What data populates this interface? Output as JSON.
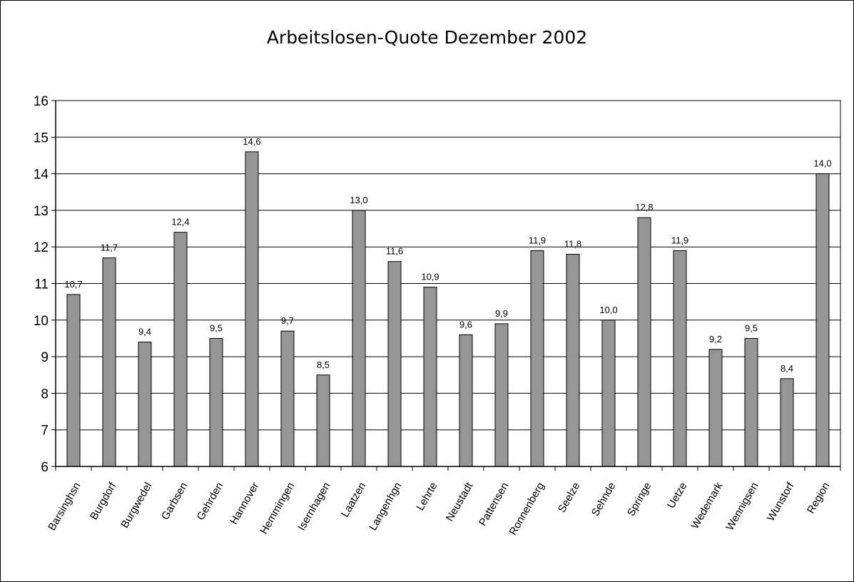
{
  "chart_data": {
    "type": "bar",
    "title": "Arbeitslosen-Quote Dezember 2002",
    "xlabel": "",
    "ylabel": "",
    "ylim": [
      6,
      16
    ],
    "yticks": [
      "6",
      "7",
      "8",
      "9",
      "10",
      "11",
      "12",
      "13",
      "14",
      "15",
      "16"
    ],
    "grid": true,
    "legend": "none",
    "bar_color": "#969696",
    "categories": [
      "Barsinghsn",
      "Burgdorf",
      "Burgwedel",
      "Garbsen",
      "Gehrden",
      "Hannover",
      "Hemmingen",
      "Isernhagen",
      "Laatzen",
      "Langenhgn",
      "Lehrte",
      "Neustadt",
      "Pattensen",
      "Ronnenberg",
      "Seelze",
      "Sehnde",
      "Springe",
      "Uetze",
      "Wedemark",
      "Wennigsen",
      "Wunstorf",
      "Region"
    ],
    "values": [
      10.7,
      11.7,
      9.4,
      12.4,
      9.5,
      14.6,
      9.7,
      8.5,
      13.0,
      11.6,
      10.9,
      9.6,
      9.9,
      11.9,
      11.8,
      10.0,
      12.8,
      11.9,
      9.2,
      9.5,
      8.4,
      14.0
    ],
    "data_labels": [
      "10,7",
      "11,7",
      "9,4",
      "12,4",
      "9,5",
      "14,6",
      "9,7",
      "8,5",
      "13,0",
      "11,6",
      "10,9",
      "9,6",
      "9,9",
      "11,9",
      "11,8",
      "10,0",
      "12,8",
      "11,9",
      "9,2",
      "9,5",
      "8,4",
      "14,0"
    ]
  }
}
